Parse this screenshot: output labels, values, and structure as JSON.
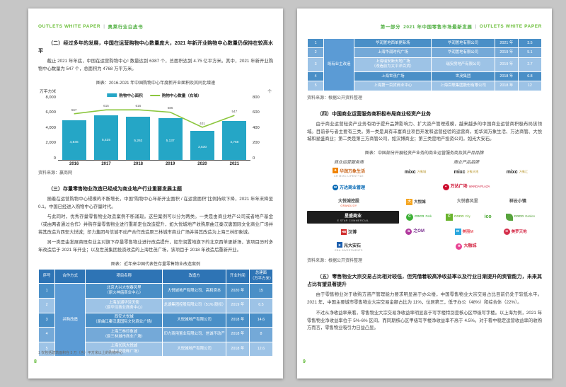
{
  "accent": {
    "green": "#5cb831",
    "teal": "#25a6c6",
    "line_green": "#8cc63e",
    "table_header": "#2e74b5",
    "row_dark": "#4a8fc7",
    "row_medium": "#74a9d8",
    "row_light": "#9dc3e6",
    "merged_cell": "#5b9bd5"
  },
  "page_left": {
    "header": {
      "en": "OUTLETS  WHITE  PAPER",
      "sep": "|",
      "cn": "奥莱行业白皮书"
    },
    "section2": {
      "title": "（二）经过多年的发展，中国在运营购物中心数量庞大，2021 年新开业购物中心数量仍保持在较高水平",
      "body": "截止 2021 年年底，中国在运营购物中心¹ 数量达到 6387 个，总面积达到 4.75 亿平方米。其中，2021 年新开业购物中心数量为 547 个，总面积为 4768 万平方米。"
    },
    "chart_source": "资料来源：赢商网",
    "section3": {
      "title": "（三）存量零售物业改造已经成为商业地产行业重要发展主题",
      "paras": [
        "随着在运营购物中心规模的不断增长，中国“购物中心年新开业面积 / 在运营面积”比例持续下降，2021 年年末降至 0.1。中国已经进入购物中心存量时代。",
        "与此同时，优秀存量零售物业改造案例不断涌现。这些案例可以分为两类。一类是由商业地产公司或者地产基金（或由两者通过合作）并购存量零售物业进行重新定位改造提升，如大悦城地产收购原曲江秦汉唐国际文化商业广场并将其改造为西安大悦城；印力集团与信诚不动产合作改造原三林城市商业广场并将其改造为上海三林印象城。",
        "另一类是由发展商既有业主对旗下存量零售物业进行改造提升，如华润置地旗下的北京西单更新场，该项目历时多年改造后于 2021 年开业；以及世茂集团投资改造的上海世茂广场，该项目于 2018 年改造后重新开业。"
      ]
    },
    "table": {
      "title": "图表：近年来中国代表性存量零售物业改造案例",
      "headers": [
        "序号",
        "合作方式",
        "项目名称",
        "改造方",
        "开业时间",
        "总建面\n（万平方米）"
      ],
      "merged_label": "并购改造",
      "rows": [
        {
          "seq": "1",
          "name": "北京大兴大悦春风里\n（原火神庙商业中心）",
          "renovator": "大悦城地产有限公司、高和资本",
          "year": "2020 年",
          "area": "15",
          "shade": "dark"
        },
        {
          "seq": "2",
          "name": "上海龙湖华泾天街\n（原华泾商业商务中心）",
          "renovator": "龙湖集团控股有限公司（51% 股权）",
          "year": "2019 年",
          "area": "6.5",
          "shade": "light"
        },
        {
          "seq": "3",
          "name": "西安大悦城\n（原曲江秦汉唐国际文化商业广场）",
          "renovator": "大悦城地产有限公司",
          "year": "2018 年",
          "area": "14.6",
          "shade": "dark"
        },
        {
          "seq": "4",
          "name": "上海三林印象城\n（原三林城市商业广场）",
          "renovator": "印力商用置业有限公司、信诚不动产",
          "year": "2018 年",
          "area": "8",
          "shade": "medium"
        },
        {
          "seq": "5",
          "name": "上海长风大悦城\n（原长风景畔广场）",
          "renovator": "大悦城地产有限公司",
          "year": "2018 年",
          "area": "12.6",
          "shade": "light"
        }
      ]
    },
    "footnote": "1 仅包括建筑面积在 3 万（含）平方米以上的购物中心",
    "page_number": "8"
  },
  "page_right": {
    "header": {
      "part": "第一部分",
      "title": "2021 年中国零售市场最新发展",
      "sep": "|",
      "en": "OUTLETS  WHITE  PAPER"
    },
    "table": {
      "merged_label": "既有业主改造",
      "rows": [
        {
          "seq": "1",
          "name": "华润置地西单更新场",
          "renovator": "华润置地有限公司",
          "year": "2021 年",
          "area": "3.5",
          "shade": "dark"
        },
        {
          "seq": "2",
          "name": "上海华润时代广场",
          "renovator": "华润置地有限公司",
          "year": "2019 年",
          "area": "5.1",
          "shade": "medium"
        },
        {
          "seq": "3",
          "name": "上海瑞安新天地广场\n（改造前为太平洋百货）",
          "renovator": "瑞安房地产有限公司",
          "year": "2019 年",
          "area": "2.7",
          "shade": "light"
        },
        {
          "seq": "4",
          "name": "上海世茂广场",
          "renovator": "世茂集团",
          "year": "2018 年",
          "area": "6.8",
          "shade": "dark"
        },
        {
          "seq": "5",
          "name": "上海第一百货商业中心",
          "renovator": "上海百联集团股份有限公司",
          "year": "2018 年",
          "area": "12",
          "shade": "light"
        }
      ]
    },
    "table_source": "资料来源：根据公开资料整理",
    "section4": {
      "title": "（四）中国商业运营服务商积极布局商业轻资产业务",
      "body": "由于商业运营轻资产业务有助于提升品牌影响力、扩大资产管理规模，越来越多的中国商业运营商积极布局该领域。目前参与者主要有三类。第一类是具有丰富商业项目开发和运营经验的运营商，如华润万象生活、万达商管、大悦城和星盛商业；第二类是第三方商管公司，如汉博商业；第三类是地产投资公司，如光大安石。"
    },
    "logos_chart": {
      "title": "图表：中国部分开展轻资产业务的商业运营服务商及其产品品牌",
      "col_left": "商业运营服务商",
      "col_right": "商业产品品牌",
      "rows": [
        {
          "company": {
            "icon": "square",
            "iconColor": "#f08300",
            "iconGlyph": "❖",
            "name": "华润万象生活",
            "nameColor": "#c8651b",
            "sub": "CR MIXC LIFESTYLE",
            "boxed": false
          },
          "brands": [
            {
              "style": "mixc",
              "text": "mixc",
              "sub": "万象城"
            },
            {
              "style": "mixc",
              "text": "mixc",
              "sub": "万象天地"
            },
            {
              "style": "mixc",
              "text": "mixc",
              "sub": "万象汇"
            }
          ]
        },
        {
          "company": {
            "icon": "round",
            "iconColor": "#0066b3",
            "iconGlyph": "W",
            "name": "万达商业管理",
            "nameColor": "#0066b3",
            "sub": "",
            "boxed": false
          },
          "brands": [
            {
              "style": "wanda",
              "text": "万达广场",
              "sub": "WANDA PLAZA"
            }
          ]
        },
        {
          "company": {
            "icon": "none",
            "iconColor": "",
            "iconGlyph": "",
            "name": "大悦城控股",
            "nameColor": "#444444",
            "sub": "GRANDJOY",
            "boxed": false
          },
          "brands": [
            {
              "style": "joy",
              "text": "大悦城",
              "sub": ""
            },
            {
              "style": "plain-gray",
              "text": "大悦春风里",
              "sub": ""
            },
            {
              "style": "plain-dark",
              "text": "祥云小镇",
              "sub": ""
            }
          ]
        },
        {
          "company": {
            "icon": "none",
            "iconColor": "",
            "iconGlyph": "",
            "name": "星盛商业",
            "nameColor": "#ffffff",
            "sub": "E STAR COMMERCIAL",
            "boxed": true
          },
          "brands": [
            {
              "style": "coco-circle",
              "text": "COCO",
              "sub": "Park"
            },
            {
              "style": "coco-square",
              "text": "COCO",
              "sub": "City"
            },
            {
              "style": "ico",
              "text": "ico",
              "sub": ""
            },
            {
              "style": "coco-leaf",
              "text": "COCO",
              "sub": "Garden"
            }
          ]
        },
        {
          "company": {
            "icon": "box-red",
            "iconColor": "#d02c2c",
            "iconGlyph": "HB",
            "name": "汉博",
            "nameColor": "#333333",
            "sub": "",
            "boxed": false
          },
          "brands": [
            {
              "style": "pinwheel",
              "text": "之OM",
              "sub": ""
            },
            {
              "style": "m-colorful",
              "text": "美丽M",
              "sub": ""
            },
            {
              "style": "red-h",
              "text": "美罗天地",
              "sub": ""
            }
          ]
        },
        {
          "company": {
            "icon": "box-blue",
            "iconColor": "#1d5fae",
            "iconGlyph": "E",
            "name": "光大安石",
            "nameColor": "#333333",
            "sub": "EBA INVESTMENTS",
            "boxed": false
          },
          "brands": [
            {
              "style": "flower",
              "text": "大融城",
              "sub": ""
            }
          ]
        }
      ]
    },
    "logos_source": "资料来源：根据公开资料整理",
    "section5": {
      "title": "（五）零售物业大宗交易占比相对较低，但凭借着较高净收益率以及行业日渐提升的资管能力，未来其占比有望显著提升",
      "paras": [
        "由于零售物业对于收购方资产管理能力要求明显高于办公楼，中国零售物业大宗交易占比目前仍处于较低水平。2021 年，中国主要城市零售物业大宗交易金额占比为 11%，位居第三，低于办公（48%）和综合体（22%）。",
        "不过从净收益率来看，零售物业大宗交易净收益率明显高于写字楼特别是核心区甲级写字楼。以上海为例，2021 年零售物业净收益率位于 5%-6% 区间，而同期核心区甲级写字楼净收益率不高于 4.5%。对于看中稳定运营收益率的收购方而言，零售物业吸引力日益凸显。"
      ]
    },
    "page_number": "9"
  },
  "chart_data": {
    "type": "bar",
    "title": "图表：2016-2021 年中国购物中心年度新开业面积及其同比增速",
    "categories": [
      "2016",
      "2017",
      "2018",
      "2019",
      "2020",
      "2021"
    ],
    "series": [
      {
        "name": "购物中心面积",
        "kind": "bar",
        "axis": "left",
        "values": [
          4846,
          5435,
          5262,
          5137,
          3530,
          4768
        ]
      },
      {
        "name": "购物中心数量（右轴）",
        "kind": "line",
        "axis": "right",
        "values": [
          567,
          615,
          616,
          586,
          401,
          547
        ]
      }
    ],
    "left_axis": {
      "label": "万平方米",
      "ticks": [
        0,
        2000,
        4000,
        6000,
        8000
      ],
      "max": 8000
    },
    "right_axis": {
      "label": "个",
      "ticks": [
        0,
        200,
        400,
        600,
        800
      ],
      "max": 800
    },
    "legend_position": "top",
    "grid": false,
    "source": "资料来源：赢商网"
  }
}
